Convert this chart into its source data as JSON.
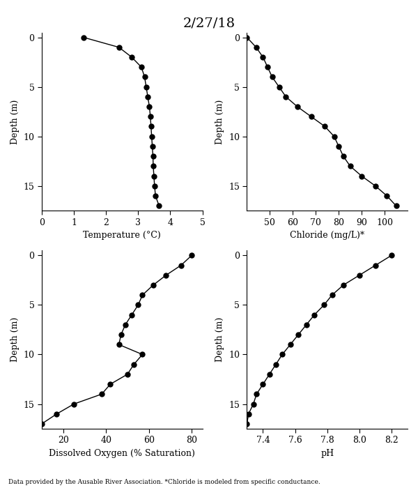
{
  "title": "2/27/18",
  "footnote": "Data provided by the Ausable River Association. *Chloride is modeled from specific conductance.",
  "depth": [
    0,
    1,
    2,
    3,
    4,
    5,
    6,
    7,
    8,
    9,
    10,
    11,
    12,
    13,
    14,
    15,
    16,
    17
  ],
  "temp": [
    1.3,
    2.4,
    2.8,
    3.1,
    3.2,
    3.25,
    3.3,
    3.35,
    3.38,
    3.4,
    3.42,
    3.44,
    3.46,
    3.47,
    3.49,
    3.51,
    3.54,
    3.65
  ],
  "chloride": [
    40,
    44,
    47,
    49,
    51,
    54,
    57,
    62,
    68,
    74,
    78,
    80,
    82,
    85,
    90,
    96,
    101,
    105
  ],
  "do": [
    80,
    75,
    68,
    62,
    57,
    55,
    52,
    49,
    47,
    46,
    57,
    53,
    50,
    42,
    38,
    25,
    17,
    10
  ],
  "ph": [
    8.2,
    8.1,
    8.0,
    7.9,
    7.83,
    7.78,
    7.72,
    7.67,
    7.62,
    7.57,
    7.52,
    7.48,
    7.44,
    7.4,
    7.36,
    7.34,
    7.31,
    7.3
  ],
  "temp_xlim": [
    0,
    5
  ],
  "temp_xticks": [
    0,
    1,
    2,
    3,
    4,
    5
  ],
  "chl_xlim": [
    40,
    110
  ],
  "chl_xticks": [
    50,
    60,
    70,
    80,
    90,
    100
  ],
  "do_xlim": [
    10,
    85
  ],
  "do_xticks": [
    20,
    40,
    60,
    80
  ],
  "ph_xlim": [
    7.3,
    8.3
  ],
  "ph_xticks": [
    7.4,
    7.6,
    7.8,
    8.0,
    8.2
  ],
  "depth_ylim": [
    17.5,
    -0.5
  ],
  "depth_yticks": [
    0,
    5,
    10,
    15
  ],
  "xlabel_temp": "Temperature (°C)",
  "xlabel_chl": "Chloride (mg/L)*",
  "xlabel_do": "Dissolved Oxygen (% Saturation)",
  "xlabel_ph": "pH",
  "ylabel": "Depth (m)",
  "line_color": "#000000",
  "marker": "o",
  "markersize": 5,
  "linewidth": 1.0,
  "markerfacecolor": "#000000"
}
